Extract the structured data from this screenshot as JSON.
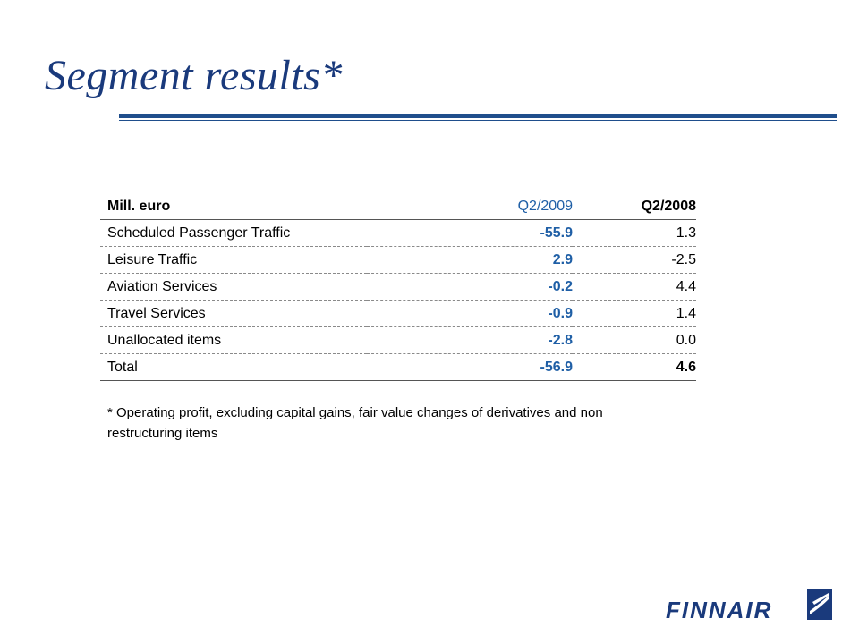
{
  "title": "Segment results*",
  "table": {
    "headers": [
      "Mill. euro",
      "Q2/2009",
      "Q2/2008"
    ],
    "rows": [
      [
        "Scheduled Passenger Traffic",
        "-55.9",
        "1.3"
      ],
      [
        "Leisure Traffic",
        "2.9",
        "-2.5"
      ],
      [
        "Aviation Services",
        "-0.2",
        "4.4"
      ],
      [
        "Travel Services",
        "-0.9",
        "1.4"
      ],
      [
        "Unallocated items",
        "-2.8",
        "0.0"
      ]
    ],
    "total": [
      "Total",
      "-56.9",
      "4.6"
    ]
  },
  "footnote": "* Operating profit, excluding capital gains, fair value changes of derivatives and non restructuring items",
  "logo": {
    "text": "FINNAIR",
    "icon": "finnair-wing-icon"
  },
  "colors": {
    "title": "#1a3a7c",
    "accent": "#1f5fa6",
    "rule": "#1f4e8c"
  }
}
